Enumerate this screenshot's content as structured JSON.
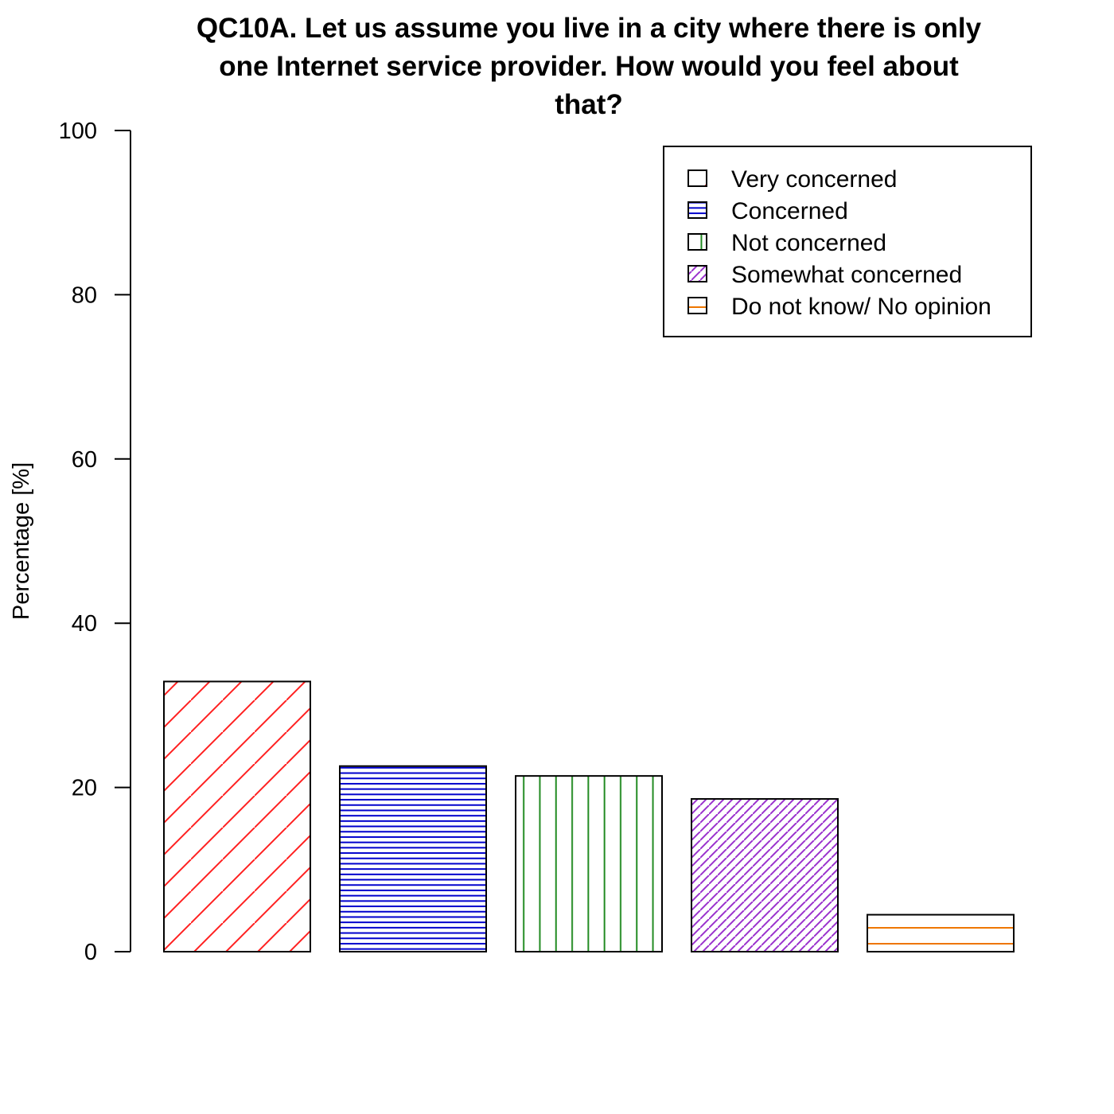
{
  "chart_data": {
    "type": "bar",
    "title": [
      "QC10A. Let us assume you live in a city where there is only",
      "one Internet service provider. How would you feel about",
      "that?"
    ],
    "xlabel": "",
    "ylabel": "Percentage [%]",
    "ylim": [
      0,
      100
    ],
    "yticks": [
      0,
      20,
      40,
      60,
      80,
      100
    ],
    "categories": [
      "Very concerned",
      "Concerned",
      "Not concerned",
      "Somewhat concerned",
      "Do not know/ No opinion"
    ],
    "values": [
      32.9,
      22.6,
      21.4,
      18.6,
      4.5
    ],
    "colors": [
      "#ff2020",
      "#0000cc",
      "#228b22",
      "#9a32cd",
      "#ee7600"
    ],
    "hatch": [
      "diag45-wide",
      "horizontal-dense",
      "vertical",
      "diag45-dense",
      "horizontal-wide"
    ],
    "legend": {
      "position": "top-right",
      "entries": [
        "Very concerned",
        "Concerned",
        "Not concerned",
        "Somewhat concerned",
        "Do not know/ No opinion"
      ]
    },
    "grid": false
  }
}
